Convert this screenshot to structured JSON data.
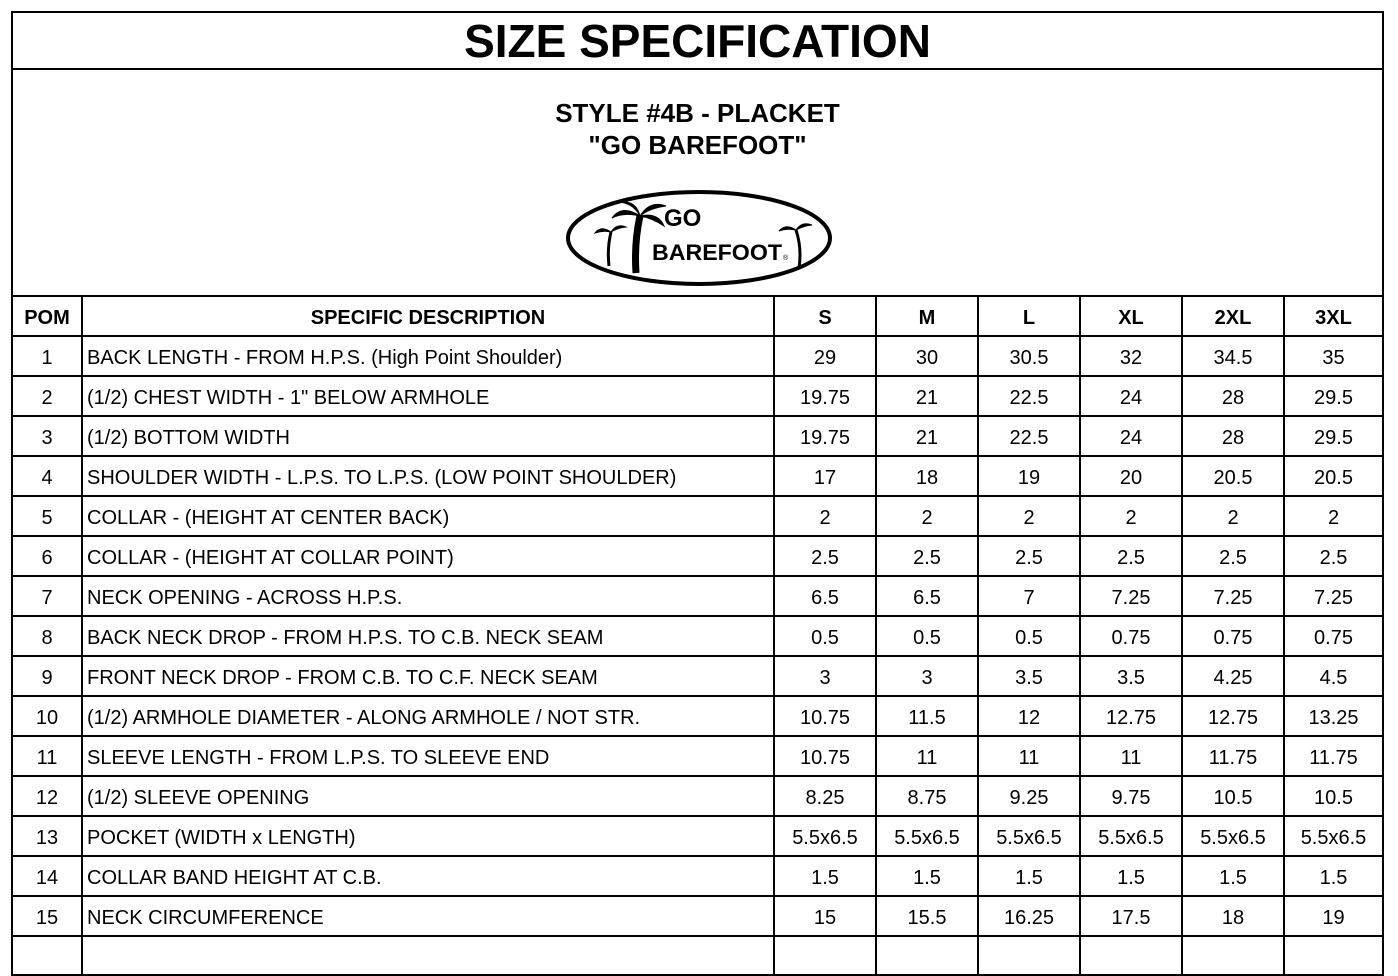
{
  "title": "SIZE SPECIFICATION",
  "style_line1": "STYLE #4B - PLACKET",
  "style_line2": "\"GO BAREFOOT\"",
  "logo": {
    "text_top": "GO",
    "text_bottom": "BAREFOOT",
    "mark": "®"
  },
  "columns": {
    "pom": "POM",
    "desc": "SPECIFIC DESCRIPTION",
    "sizes": [
      "S",
      "M",
      "L",
      "XL",
      "2XL",
      "3XL"
    ]
  },
  "rows": [
    {
      "pom": "1",
      "desc": "BACK LENGTH - FROM H.P.S. (High Point Shoulder)",
      "values": [
        "29",
        "30",
        "30.5",
        "32",
        "34.5",
        "35"
      ]
    },
    {
      "pom": "2",
      "desc": "(1/2) CHEST WIDTH - 1\" BELOW ARMHOLE",
      "values": [
        "19.75",
        "21",
        "22.5",
        "24",
        "28",
        "29.5"
      ]
    },
    {
      "pom": "3",
      "desc": "(1/2) BOTTOM WIDTH",
      "values": [
        "19.75",
        "21",
        "22.5",
        "24",
        "28",
        "29.5"
      ]
    },
    {
      "pom": "4",
      "desc": "SHOULDER WIDTH - L.P.S. TO L.P.S. (LOW POINT SHOULDER)",
      "values": [
        "17",
        "18",
        "19",
        "20",
        "20.5",
        "20.5"
      ]
    },
    {
      "pom": "5",
      "desc": "COLLAR - (HEIGHT AT CENTER BACK)",
      "values": [
        "2",
        "2",
        "2",
        "2",
        "2",
        "2"
      ]
    },
    {
      "pom": "6",
      "desc": "COLLAR - (HEIGHT AT COLLAR POINT)",
      "values": [
        "2.5",
        "2.5",
        "2.5",
        "2.5",
        "2.5",
        "2.5"
      ]
    },
    {
      "pom": "7",
      "desc": "NECK OPENING - ACROSS H.P.S.",
      "values": [
        "6.5",
        "6.5",
        "7",
        "7.25",
        "7.25",
        "7.25"
      ]
    },
    {
      "pom": "8",
      "desc": "BACK NECK DROP - FROM H.P.S. TO C.B. NECK SEAM",
      "values": [
        "0.5",
        "0.5",
        "0.5",
        "0.75",
        "0.75",
        "0.75"
      ]
    },
    {
      "pom": "9",
      "desc": "FRONT NECK DROP - FROM C.B. TO C.F. NECK SEAM",
      "values": [
        "3",
        "3",
        "3.5",
        "3.5",
        "4.25",
        "4.5"
      ]
    },
    {
      "pom": "10",
      "desc": "(1/2) ARMHOLE DIAMETER - ALONG ARMHOLE / NOT STR.",
      "values": [
        "10.75",
        "11.5",
        "12",
        "12.75",
        "12.75",
        "13.25"
      ]
    },
    {
      "pom": "11",
      "desc": "SLEEVE LENGTH - FROM L.P.S. TO SLEEVE END",
      "values": [
        "10.75",
        "11",
        "11",
        "11",
        "11.75",
        "11.75"
      ]
    },
    {
      "pom": "12",
      "desc": "(1/2) SLEEVE OPENING",
      "values": [
        "8.25",
        "8.75",
        "9.25",
        "9.75",
        "10.5",
        "10.5"
      ]
    },
    {
      "pom": "13",
      "desc": "POCKET (WIDTH x LENGTH)",
      "values": [
        "5.5x6.5",
        "5.5x6.5",
        "5.5x6.5",
        "5.5x6.5",
        "5.5x6.5",
        "5.5x6.5"
      ]
    },
    {
      "pom": "14",
      "desc": "COLLAR BAND HEIGHT AT C.B.",
      "values": [
        "1.5",
        "1.5",
        "1.5",
        "1.5",
        "1.5",
        "1.5"
      ]
    },
    {
      "pom": "15",
      "desc": "NECK CIRCUMFERENCE",
      "values": [
        "15",
        "15.5",
        "16.25",
        "17.5",
        "18",
        "19"
      ]
    }
  ]
}
